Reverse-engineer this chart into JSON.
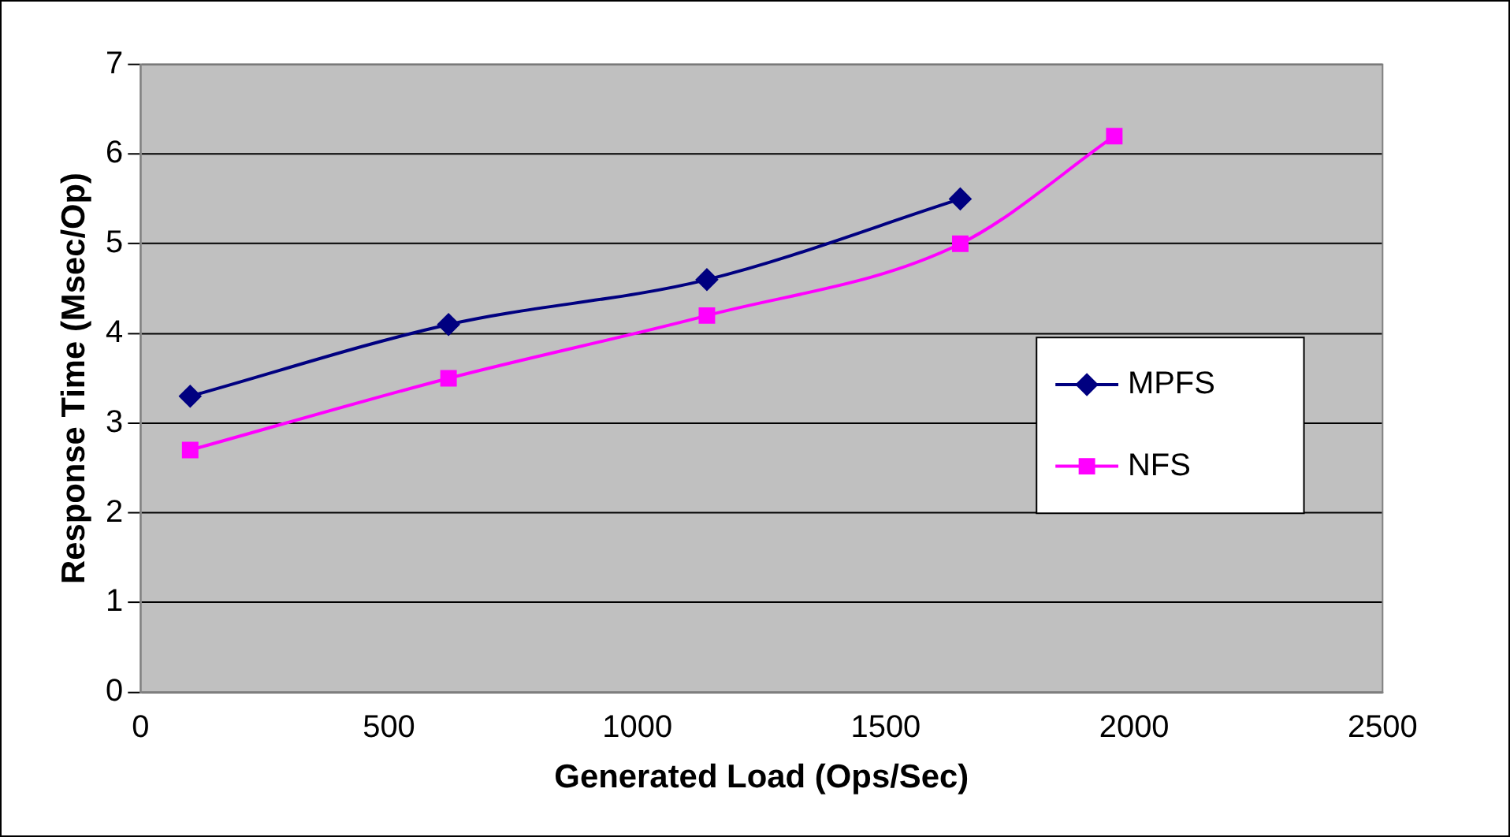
{
  "chart_data": {
    "type": "line",
    "xlabel": "Generated Load (Ops/Sec)",
    "ylabel": "Response Time (Msec/Op)",
    "xlim": [
      0,
      2500
    ],
    "xticks": [
      0,
      500,
      1000,
      1500,
      2000,
      2500
    ],
    "ylim": [
      0,
      7
    ],
    "yticks": [
      0,
      1,
      2,
      3,
      4,
      5,
      6,
      7
    ],
    "grid": "y",
    "legend": "right",
    "series": [
      {
        "name": "MPFS",
        "color": "#000080",
        "marker": "diamond",
        "x": [
          100,
          620,
          1140,
          1650
        ],
        "values": [
          3.3,
          4.1,
          4.6,
          5.5
        ]
      },
      {
        "name": "NFS",
        "color": "#ff00ff",
        "marker": "square",
        "x": [
          100,
          620,
          1140,
          1650,
          1960
        ],
        "values": [
          2.7,
          3.5,
          4.2,
          5.0,
          6.2
        ]
      }
    ]
  }
}
